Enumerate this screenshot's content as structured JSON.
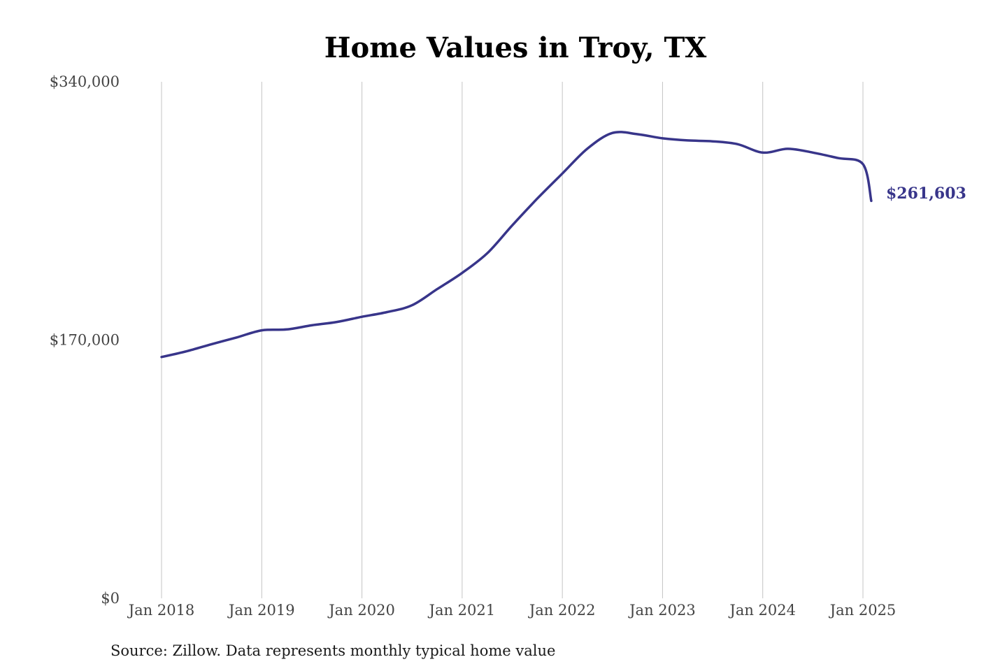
{
  "chart_data": {
    "type": "line",
    "title": "Home Values in Troy, TX",
    "xlabel": "",
    "ylabel": "",
    "source": "Source: Zillow. Data represents monthly typical home value",
    "ylim": [
      0,
      340000
    ],
    "y_ticks": [
      {
        "value": 0,
        "label": "$0"
      },
      {
        "value": 170000,
        "label": "$170,000"
      },
      {
        "value": 340000,
        "label": "$340,000"
      }
    ],
    "x_range": [
      "2018-01",
      "2025-02"
    ],
    "x_ticks": [
      {
        "date": "2018-01",
        "label": "Jan 2018"
      },
      {
        "date": "2019-01",
        "label": "Jan 2019"
      },
      {
        "date": "2020-01",
        "label": "Jan 2020"
      },
      {
        "date": "2021-01",
        "label": "Jan 2021"
      },
      {
        "date": "2022-01",
        "label": "Jan 2022"
      },
      {
        "date": "2023-01",
        "label": "Jan 2023"
      },
      {
        "date": "2024-01",
        "label": "Jan 2024"
      },
      {
        "date": "2025-01",
        "label": "Jan 2025"
      }
    ],
    "grid": "vertical",
    "line_color": "#38358a",
    "end_label": "$261,603",
    "series": [
      {
        "x": [
          "2018-01",
          "2018-04",
          "2018-07",
          "2018-10",
          "2019-01",
          "2019-04",
          "2019-07",
          "2019-10",
          "2020-01",
          "2020-04",
          "2020-07",
          "2020-10",
          "2021-01",
          "2021-04",
          "2021-07",
          "2021-10",
          "2022-01",
          "2022-04",
          "2022-07",
          "2022-10",
          "2023-01",
          "2023-04",
          "2023-07",
          "2023-10",
          "2024-01",
          "2024-04",
          "2024-07",
          "2024-10",
          "2025-01",
          "2025-02"
        ],
        "values": [
          158800,
          162600,
          167300,
          171700,
          176400,
          177000,
          179700,
          181900,
          185300,
          188400,
          192900,
          203500,
          214200,
          227100,
          245500,
          263100,
          279600,
          296000,
          306300,
          305500,
          302800,
          301400,
          300800,
          298900,
          293400,
          295900,
          293400,
          289800,
          285800,
          261603
        ]
      }
    ]
  }
}
